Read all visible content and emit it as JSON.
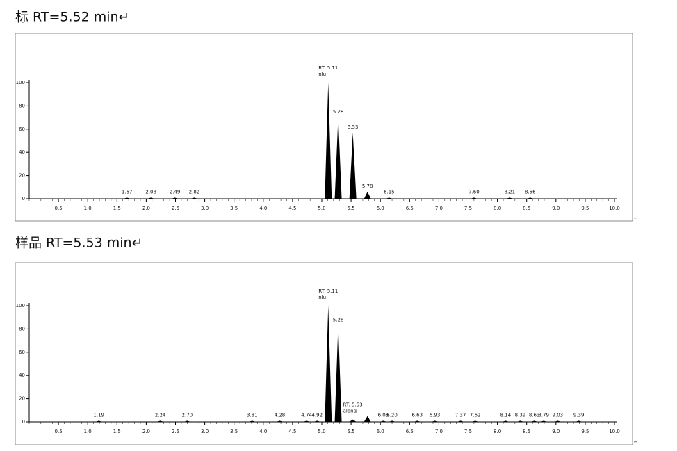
{
  "chart_data": [
    {
      "type": "peaks",
      "title": "标  RT=5.52 min↵",
      "end_mark": "↵",
      "color": "#000000",
      "x": [
        1.67,
        2.08,
        2.49,
        2.82,
        5.11,
        5.28,
        5.53,
        5.78,
        6.15,
        7.6,
        8.21,
        8.56
      ],
      "values": [
        1,
        1,
        1,
        1,
        100,
        70,
        57,
        6,
        1,
        1,
        1,
        1
      ],
      "labels": [
        "1.67",
        "2.08",
        "2.49",
        "2.82",
        [
          "RT: 5.11",
          "nlu"
        ],
        "5.28",
        "5.53",
        "5.78",
        "6.15",
        "7.60",
        "8.21",
        "8.56"
      ],
      "xlim": [
        0,
        10
      ],
      "xticks": [
        0.5,
        {
          "value": 1,
          "label": "1.0"
        },
        1.5,
        {
          "value": 2,
          "label": "2.0"
        },
        2.5,
        {
          "value": 3,
          "label": "3.0"
        },
        3.5,
        {
          "value": 4,
          "label": "4.0"
        },
        4.5,
        {
          "value": 5,
          "label": "5.0"
        },
        5.5,
        {
          "value": 6,
          "label": "6.0"
        },
        6.5,
        {
          "value": 7,
          "label": "7.0"
        },
        7.5,
        {
          "value": 8,
          "label": "8.0"
        },
        8.5,
        {
          "value": 9,
          "label": "9.0"
        },
        9.5,
        {
          "value": 10,
          "label": "10.0"
        }
      ],
      "ylim": [
        0,
        100
      ],
      "yticks": [
        0,
        20,
        40,
        60,
        80,
        100
      ]
    },
    {
      "type": "peaks",
      "title": "样品  RT=5.53 min↵",
      "end_mark": "↵",
      "color": "#000000",
      "x": [
        1.19,
        2.24,
        2.7,
        3.81,
        4.28,
        4.74,
        4.92,
        5.11,
        5.28,
        5.53,
        5.78,
        6.05,
        6.2,
        6.63,
        6.93,
        7.37,
        7.62,
        8.14,
        8.39,
        8.63,
        8.79,
        9.03,
        9.39
      ],
      "values": [
        1,
        1,
        1,
        1,
        1,
        1,
        1,
        100,
        83,
        2,
        5,
        1,
        1,
        1,
        1,
        1,
        1,
        1,
        1,
        1,
        1,
        1,
        1
      ],
      "labels": [
        "1.19",
        "2.24",
        "2.70",
        "3.81",
        "4.28",
        "4.74",
        "4.92",
        [
          "RT: 5.11",
          "nlu"
        ],
        "5.28",
        [
          "RT: 5.53",
          "along"
        ],
        null,
        "6.05",
        "6.20",
        "6.63",
        "6.93",
        "7.37",
        "7.62",
        "8.14",
        "8.39",
        "8.63",
        "8.79",
        "9.03",
        "9.39"
      ],
      "xlim": [
        0,
        10
      ],
      "xticks": [
        0.5,
        {
          "value": 1,
          "label": "1.0"
        },
        1.5,
        {
          "value": 2,
          "label": "2.0"
        },
        2.5,
        {
          "value": 3,
          "label": "3.0"
        },
        3.5,
        {
          "value": 4,
          "label": "4.0"
        },
        4.5,
        {
          "value": 5,
          "label": "5.0"
        },
        5.5,
        {
          "value": 6,
          "label": "6.0"
        },
        6.5,
        {
          "value": 7,
          "label": "7.0"
        },
        7.5,
        {
          "value": 8,
          "label": "8.0"
        },
        8.5,
        {
          "value": 9,
          "label": "9.0"
        },
        9.5,
        {
          "value": 10,
          "label": "10.0"
        }
      ],
      "ylim": [
        0,
        100
      ],
      "yticks": [
        0,
        20,
        40,
        60,
        80,
        100
      ]
    }
  ]
}
